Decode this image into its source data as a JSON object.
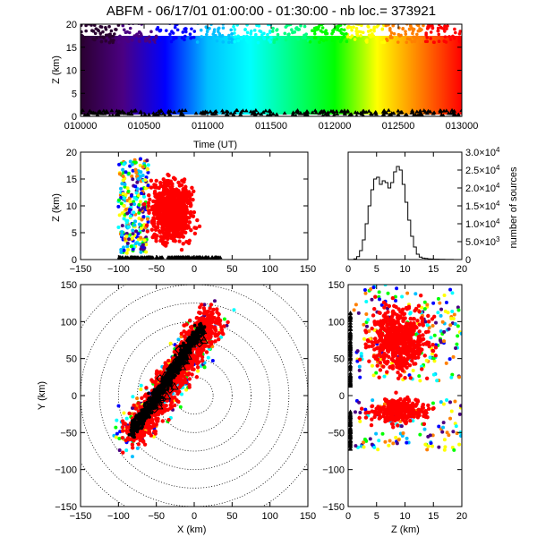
{
  "title": "ABFM - 06/17/01 01:00:00 - 01:30:00 - nb loc.= 373921",
  "chart_data": [
    {
      "panel": "time-altitude",
      "type": "scatter",
      "xlabel": "Time (UT)",
      "ylabel": "Z (km)",
      "xlim": [
        0,
        3
      ],
      "ylim": [
        0,
        20
      ],
      "x_ticks": [
        "010000",
        "010500",
        "011000",
        "011500",
        "012000",
        "012500",
        "013000"
      ],
      "y_ticks": [
        "0",
        "5",
        "10",
        "15",
        "20"
      ],
      "point_color_encodes": "time (rainbow, purple to red)",
      "bulk_altitude_km": [
        3,
        17
      ]
    },
    {
      "panel": "xz-projection",
      "type": "scatter",
      "xlabel": "",
      "ylabel": "Z (km)",
      "xlim": [
        -150,
        150
      ],
      "ylim": [
        0,
        20
      ],
      "x_ticks": [
        "−150",
        "−100",
        "−50",
        "0",
        "50",
        "100",
        "150"
      ],
      "y_ticks": [
        "0",
        "5",
        "10",
        "15",
        "20"
      ]
    },
    {
      "panel": "altitude-histogram",
      "type": "line",
      "xlabel": "",
      "ylabel": "number of sources",
      "xlim": [
        0,
        20
      ],
      "ylim": [
        0,
        30000
      ],
      "x_ticks": [
        "0",
        "5",
        "10",
        "15",
        "20"
      ],
      "y_ticks": [
        {
          "mant": "0",
          "exp": ""
        },
        {
          "mant": "5.0×10",
          "exp": "3"
        },
        {
          "mant": "1.0×10",
          "exp": "4"
        },
        {
          "mant": "1.5×10",
          "exp": "4"
        },
        {
          "mant": "2.0×10",
          "exp": "4"
        },
        {
          "mant": "2.5×10",
          "exp": "4"
        },
        {
          "mant": "3.0×10",
          "exp": "4"
        }
      ],
      "x": [
        0,
        0.5,
        1,
        1.5,
        2,
        2.5,
        3,
        3.5,
        4,
        4.5,
        5,
        5.5,
        6,
        6.5,
        7,
        7.5,
        8,
        8.5,
        9,
        9.5,
        10,
        10.5,
        11,
        11.5,
        12,
        12.5,
        13,
        13.5,
        14,
        14.5,
        15,
        15.5,
        16,
        16.5,
        17,
        17.5,
        18,
        18.5,
        19,
        19.5
      ],
      "values": [
        0,
        0,
        200,
        800,
        2500,
        5500,
        10000,
        15000,
        19500,
        22500,
        23000,
        21000,
        22000,
        21500,
        20000,
        21500,
        24500,
        26000,
        25000,
        21000,
        16000,
        11000,
        6500,
        3500,
        1500,
        700,
        400,
        300,
        200,
        150,
        100,
        80,
        60,
        50,
        40,
        30,
        20,
        10,
        5,
        0
      ]
    },
    {
      "panel": "plan-view",
      "type": "scatter",
      "xlabel": "X (km)",
      "ylabel": "Y (km)",
      "xlim": [
        -150,
        150
      ],
      "ylim": [
        -150,
        150
      ],
      "x_ticks": [
        "−150",
        "−100",
        "−50",
        "0",
        "50",
        "100",
        "150"
      ],
      "y_ticks": [
        "−150",
        "−100",
        "−50",
        "0",
        "50",
        "100",
        "150"
      ],
      "range_rings_km": [
        25,
        50,
        75,
        100,
        125,
        150,
        175
      ],
      "storm_band": "oriented southwest to northeast through (-40, 10)"
    },
    {
      "panel": "zy-projection",
      "type": "scatter",
      "xlabel": "Z (km)",
      "ylabel": "",
      "xlim": [
        0,
        20
      ],
      "ylim": [
        -150,
        150
      ],
      "x_ticks": [
        "0",
        "5",
        "10",
        "15",
        "20"
      ],
      "y_ticks": [
        "−150",
        "−100",
        "−50",
        "0",
        "50",
        "100",
        "150"
      ]
    }
  ],
  "colors": {
    "rainbow": [
      "#2a0030",
      "#4b0082",
      "#0000ff",
      "#00bfff",
      "#00ffff",
      "#00ff80",
      "#00ff00",
      "#ffff00",
      "#ff8000",
      "#ff0000"
    ],
    "dominant_point_color": "#ff0000",
    "station_marker_color": "#000000"
  }
}
